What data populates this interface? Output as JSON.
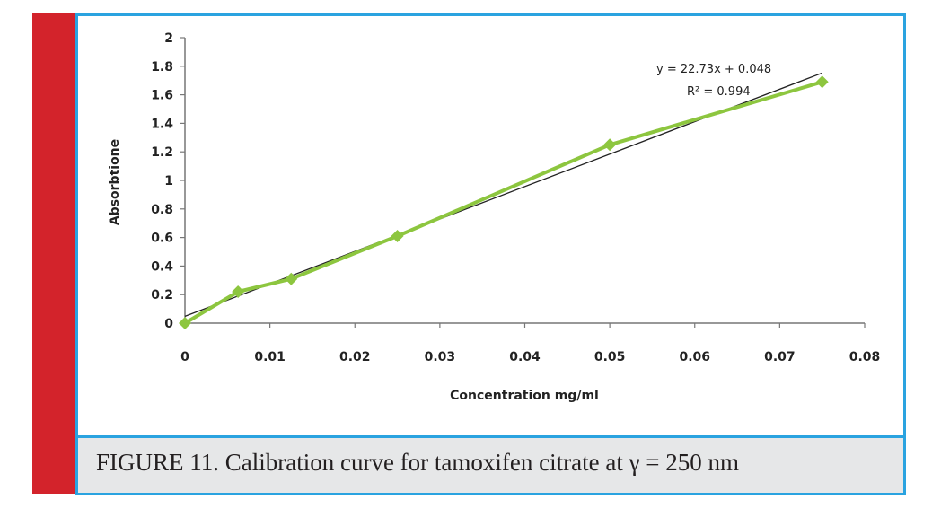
{
  "caption": "FIGURE 11. Calibration curve for tamoxifen citrate at γ = 250 nm",
  "chart_data": {
    "type": "scatter",
    "xlabel": "Concentration mg/ml",
    "ylabel": "Absorbtione",
    "xlim": [
      0,
      0.08
    ],
    "ylim": [
      0,
      2
    ],
    "x_ticks": [
      "0",
      "0.01",
      "0.02",
      "0.03",
      "0.04",
      "0.05",
      "0.06",
      "0.07",
      "0.08"
    ],
    "y_ticks": [
      "0",
      "0.2",
      "0.4",
      "0.6",
      "0.8",
      "1",
      "1.2",
      "1.4",
      "1.6",
      "1.8",
      "2"
    ],
    "series": [
      {
        "x": [
          0,
          0.00625,
          0.0125,
          0.025,
          0.05,
          0.075
        ],
        "y": [
          0.0,
          0.22,
          0.31,
          0.61,
          1.25,
          1.69
        ],
        "color": "#8dc63f",
        "markers": "diamond",
        "connected": true
      }
    ],
    "trendline": {
      "slope": 22.73,
      "intercept": 0.048,
      "x_range": [
        0,
        0.075
      ],
      "color": "#222222",
      "equation": "y = 22.73x + 0.048",
      "r2_label": "R² = 0.994"
    },
    "grid": false
  }
}
